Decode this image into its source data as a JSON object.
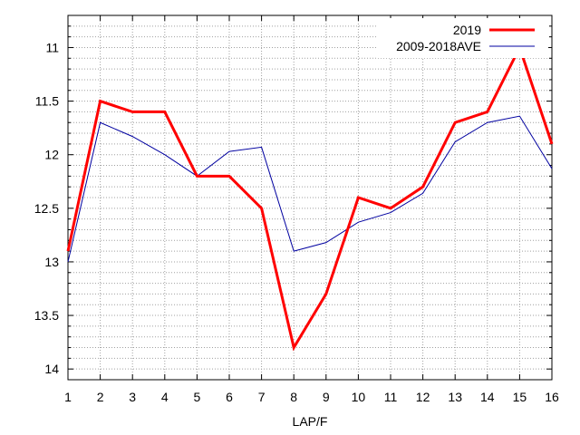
{
  "chart_data": {
    "type": "line",
    "title": "",
    "xlabel": "LAP/F",
    "ylabel": "",
    "x": [
      1,
      2,
      3,
      4,
      5,
      6,
      7,
      8,
      9,
      10,
      11,
      12,
      13,
      14,
      15,
      16
    ],
    "x_tick_labels": [
      "1",
      "2",
      "3",
      "4",
      "5",
      "6",
      "7",
      "8",
      "9",
      "10",
      "11",
      "12",
      "13",
      "14",
      "15",
      "16"
    ],
    "xlim": [
      1,
      16
    ],
    "ylim": [
      14.1,
      10.7
    ],
    "y_axis_inverted": true,
    "y_ticks": [
      11,
      11.5,
      12,
      12.5,
      13,
      13.5,
      14
    ],
    "y_tick_labels": [
      "11",
      "11.5",
      "12",
      "12.5",
      "13",
      "13.5",
      "14"
    ],
    "grid": true,
    "legend_position": "top-right",
    "series": [
      {
        "name": "2019",
        "color": "#ff0000",
        "values": [
          12.9,
          11.5,
          11.6,
          11.6,
          12.2,
          12.2,
          12.5,
          13.8,
          13.3,
          12.4,
          12.5,
          12.3,
          11.7,
          11.6,
          11.0,
          11.9
        ]
      },
      {
        "name": "2009-2018AVE",
        "color": "#0000a0",
        "values": [
          13.0,
          11.7,
          11.83,
          12.0,
          12.2,
          11.97,
          11.93,
          12.9,
          12.82,
          12.63,
          12.54,
          12.36,
          11.88,
          11.7,
          11.64,
          12.13
        ]
      }
    ]
  }
}
